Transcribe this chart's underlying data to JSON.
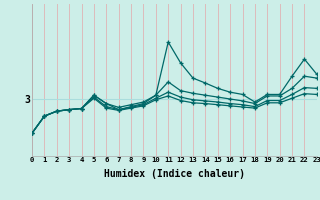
{
  "xlabel": "Humidex (Indice chaleur)",
  "bg_color": "#cceee8",
  "line_color": "#006868",
  "vgrid_color": "#ddbbbb",
  "hgrid_color": "#aadddd",
  "x_ticks": [
    0,
    1,
    2,
    3,
    4,
    5,
    6,
    7,
    8,
    9,
    10,
    11,
    12,
    13,
    14,
    15,
    16,
    17,
    18,
    19,
    20,
    21,
    22,
    23
  ],
  "y_label_val": 3,
  "xlim": [
    0,
    23
  ],
  "ylim": [
    1.5,
    5.5
  ],
  "series": [
    [
      2.1,
      2.55,
      2.68,
      2.72,
      2.75,
      3.1,
      2.88,
      2.72,
      2.8,
      2.88,
      3.1,
      4.5,
      3.95,
      3.55,
      3.42,
      3.28,
      3.18,
      3.12,
      2.92,
      3.12,
      3.12,
      3.6,
      4.05,
      3.65
    ],
    [
      2.1,
      2.55,
      2.68,
      2.72,
      2.75,
      3.1,
      2.88,
      2.78,
      2.85,
      2.92,
      3.1,
      3.45,
      3.22,
      3.15,
      3.1,
      3.05,
      3.0,
      2.95,
      2.88,
      3.08,
      3.08,
      3.28,
      3.6,
      3.55
    ],
    [
      2.1,
      2.55,
      2.68,
      2.72,
      2.75,
      3.05,
      2.8,
      2.72,
      2.78,
      2.85,
      3.02,
      3.18,
      3.05,
      2.98,
      2.95,
      2.92,
      2.88,
      2.85,
      2.8,
      2.96,
      2.96,
      3.12,
      3.3,
      3.28
    ],
    [
      2.1,
      2.55,
      2.68,
      2.72,
      2.75,
      3.02,
      2.76,
      2.7,
      2.76,
      2.82,
      2.98,
      3.08,
      2.96,
      2.9,
      2.88,
      2.85,
      2.82,
      2.79,
      2.76,
      2.9,
      2.9,
      3.02,
      3.14,
      3.12
    ]
  ]
}
